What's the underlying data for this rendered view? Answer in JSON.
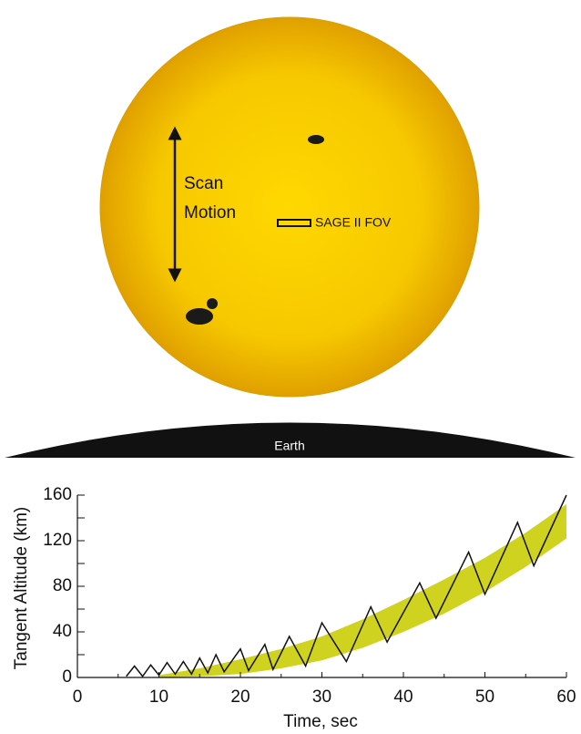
{
  "diagram": {
    "scan_label": [
      "Scan",
      "Motion"
    ],
    "fov_label": "SAGE II FOV",
    "earth_label": "Earth"
  },
  "chart_data": {
    "type": "line",
    "x_label": "Time, sec",
    "y_label": "Tangent Altitude (km)",
    "xlim": [
      0,
      60
    ],
    "xticks": [
      0,
      10,
      20,
      30,
      40,
      50,
      60
    ],
    "xminorticks": [
      5,
      15,
      25,
      35,
      45,
      55
    ],
    "ylim": [
      0,
      160
    ],
    "yticks": [
      0,
      40,
      80,
      120,
      160
    ],
    "yminorticks": [
      20,
      60,
      100,
      140
    ],
    "series": [
      {
        "color": "#111111",
        "x": [
          6,
          7,
          8,
          9,
          10,
          11,
          12,
          13,
          14,
          15,
          16,
          17,
          18,
          20,
          21,
          23,
          24,
          26,
          28,
          30,
          33,
          36,
          38,
          42,
          44,
          48,
          50,
          54,
          56,
          60
        ],
        "y": [
          1,
          10,
          1,
          11,
          2,
          13,
          3,
          14,
          3,
          17,
          4,
          20,
          5,
          25,
          6,
          29,
          7,
          36,
          10,
          48,
          14,
          62,
          31,
          83,
          52,
          110,
          73,
          136,
          98,
          160
        ]
      }
    ],
    "band": {
      "color": "#cfd21f",
      "x": [
        10,
        15,
        20,
        25,
        30,
        35,
        40,
        45,
        50,
        55,
        60
      ],
      "lower": [
        0,
        1,
        3,
        8,
        15,
        26,
        40,
        56,
        75,
        97,
        122
      ],
      "upper": [
        2,
        8,
        16,
        25,
        36,
        51,
        68,
        86,
        105,
        127,
        152
      ]
    }
  }
}
